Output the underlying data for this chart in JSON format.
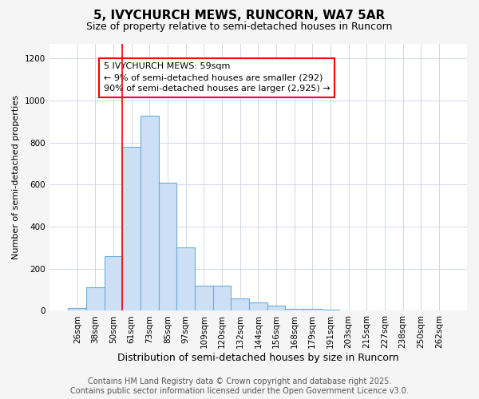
{
  "title1": "5, IVYCHURCH MEWS, RUNCORN, WA7 5AR",
  "title2": "Size of property relative to semi-detached houses in Runcorn",
  "xlabel": "Distribution of semi-detached houses by size in Runcorn",
  "ylabel": "Number of semi-detached properties",
  "bar_labels": [
    "26sqm",
    "38sqm",
    "50sqm",
    "61sqm",
    "73sqm",
    "85sqm",
    "97sqm",
    "109sqm",
    "120sqm",
    "132sqm",
    "144sqm",
    "156sqm",
    "168sqm",
    "179sqm",
    "191sqm",
    "203sqm",
    "215sqm",
    "227sqm",
    "238sqm",
    "250sqm",
    "262sqm"
  ],
  "bar_values": [
    15,
    110,
    260,
    780,
    930,
    610,
    300,
    120,
    120,
    60,
    40,
    25,
    10,
    8,
    4,
    2,
    2,
    1,
    0,
    0,
    2
  ],
  "bar_color": "#ccdff5",
  "bar_edgecolor": "#6aaed6",
  "ylim": [
    0,
    1270
  ],
  "yticks": [
    0,
    200,
    400,
    600,
    800,
    1000,
    1200
  ],
  "vline_x_index": 3,
  "annotation_text": "5 IVYCHURCH MEWS: 59sqm\n← 9% of semi-detached houses are smaller (292)\n90% of semi-detached houses are larger (2,925) →",
  "footer1": "Contains HM Land Registry data © Crown copyright and database right 2025.",
  "footer2": "Contains public sector information licensed under the Open Government Licence v3.0.",
  "bg_color": "#f5f5f5",
  "plot_bg_color": "#ffffff",
  "grid_color": "#d0d8e8",
  "title1_fontsize": 11,
  "title2_fontsize": 9,
  "xlabel_fontsize": 9,
  "ylabel_fontsize": 8,
  "tick_fontsize": 7.5,
  "annotation_fontsize": 8,
  "footer_fontsize": 7
}
